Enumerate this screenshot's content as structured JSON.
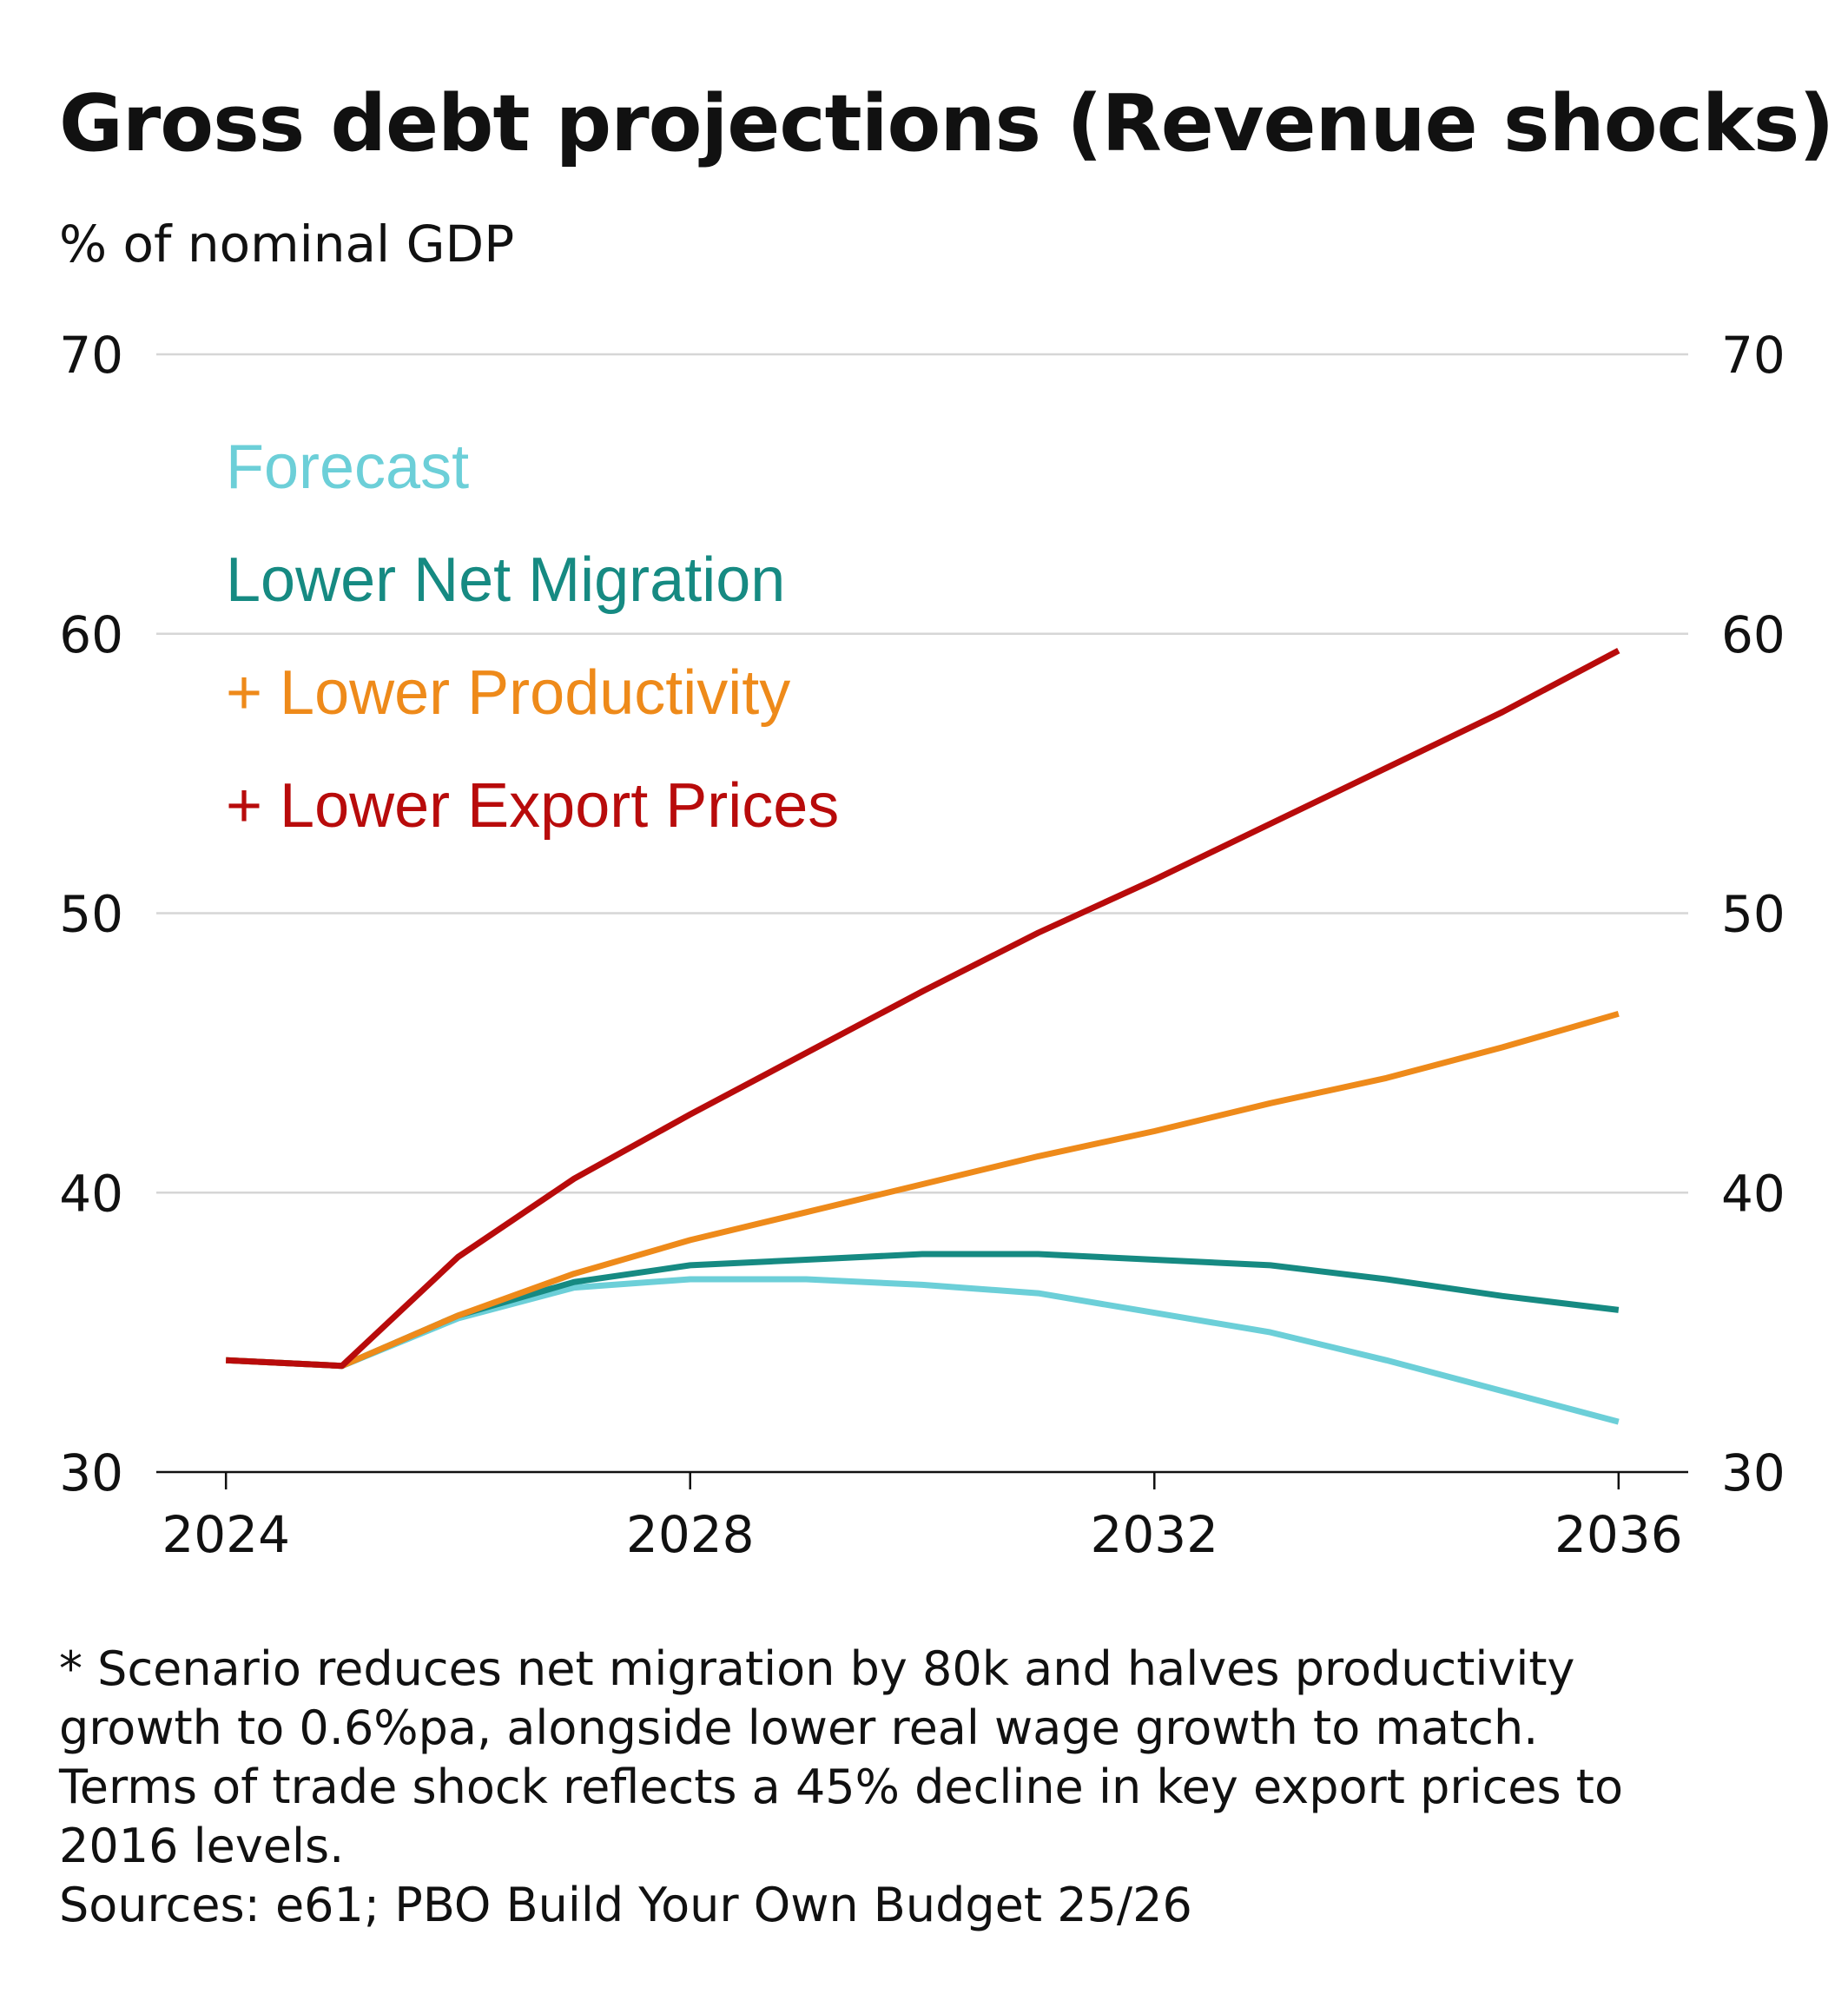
{
  "title": "Gross debt projections (Revenue shocks)",
  "subtitle": "% of nominal GDP",
  "footnote": {
    "lines": [
      "* Scenario reduces net migration by 80k and halves productivity",
      "growth to 0.6%pa, alongside lower real wage growth to match.",
      "Terms of trade shock reflects a 45% decline in key export prices to",
      "2016 levels."
    ],
    "sources": "Sources: e61; PBO Build Your Own Budget 25/26"
  },
  "chart_data": {
    "type": "line",
    "title": "Gross debt projections (Revenue shocks)",
    "ylabel": "% of nominal GDP",
    "xlabel": "",
    "x": [
      2024,
      2025,
      2026,
      2027,
      2028,
      2029,
      2030,
      2031,
      2032,
      2033,
      2034,
      2035,
      2036
    ],
    "xticks": [
      2024,
      2028,
      2032,
      2036
    ],
    "xtick_labels": [
      "2024",
      "2028",
      "2032",
      "2036"
    ],
    "xlim": [
      2023.4,
      2036.6
    ],
    "ylim": [
      30,
      70
    ],
    "yticks": [
      30,
      40,
      50,
      60,
      70
    ],
    "ytick_labels": [
      "30",
      "40",
      "50",
      "60",
      "70"
    ],
    "grid": true,
    "legend_position": "top-left",
    "series": [
      {
        "name": "Forecast",
        "color": "#6ccfd8",
        "values": [
          34.0,
          33.8,
          35.5,
          36.6,
          36.9,
          36.9,
          36.7,
          36.4,
          35.7,
          35.0,
          34.0,
          32.9,
          31.8
        ]
      },
      {
        "name": "Lower Net Migration",
        "color": "#168a82",
        "values": [
          34.0,
          33.8,
          35.6,
          36.8,
          37.4,
          37.6,
          37.8,
          37.8,
          37.6,
          37.4,
          36.9,
          36.3,
          35.8
        ]
      },
      {
        "name": "+ Lower Productivity",
        "color": "#ee8a1a",
        "values": [
          34.0,
          33.8,
          35.6,
          37.1,
          38.3,
          39.3,
          40.3,
          41.3,
          42.2,
          43.2,
          44.1,
          45.2,
          46.4
        ]
      },
      {
        "name": "+ Lower Export Prices",
        "color": "#b80b0b",
        "values": [
          34.0,
          33.8,
          37.7,
          40.5,
          42.8,
          45.0,
          47.2,
          49.3,
          51.2,
          53.2,
          55.2,
          57.2,
          59.4
        ]
      }
    ]
  }
}
